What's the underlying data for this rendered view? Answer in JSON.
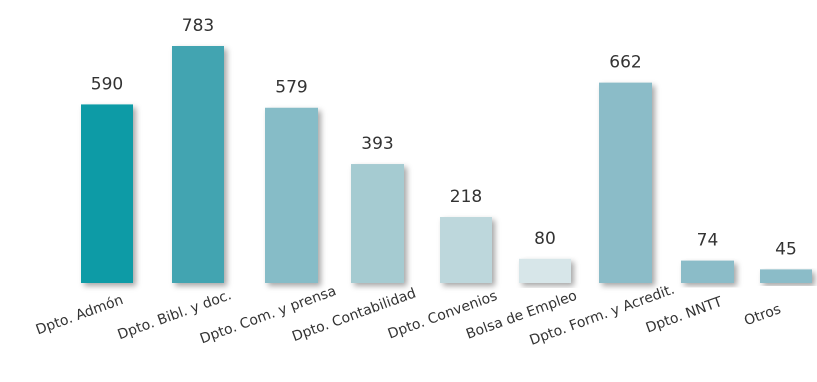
{
  "chart_data": {
    "type": "bar",
    "categories": [
      "Dpto. Admón",
      "Dpto. Bibl. y doc.",
      "Dpto. Com. y prensa",
      "Dpto. Contabilidad",
      "Dpto. Convenios",
      "Bolsa de Empleo",
      "Dpto. Form. y Acredit.",
      "Dpto. NNTT",
      "Otros"
    ],
    "values": [
      590,
      783,
      579,
      393,
      218,
      80,
      662,
      74,
      45
    ],
    "data_labels": [
      "590",
      "783",
      "579",
      "393",
      "218",
      "80",
      "662",
      "74",
      "45"
    ],
    "colors": [
      "#0a9ba6",
      "#43a4b1",
      "#86bcc7",
      "#a5cbd1",
      "#bdd7dc",
      "#d7e6e9",
      "#8bbcc8",
      "#8bbcc8",
      "#8bbcc8"
    ],
    "title": "",
    "xlabel": "",
    "ylabel": "",
    "ylim": [
      0,
      783
    ],
    "grid": false,
    "legend": "none"
  }
}
